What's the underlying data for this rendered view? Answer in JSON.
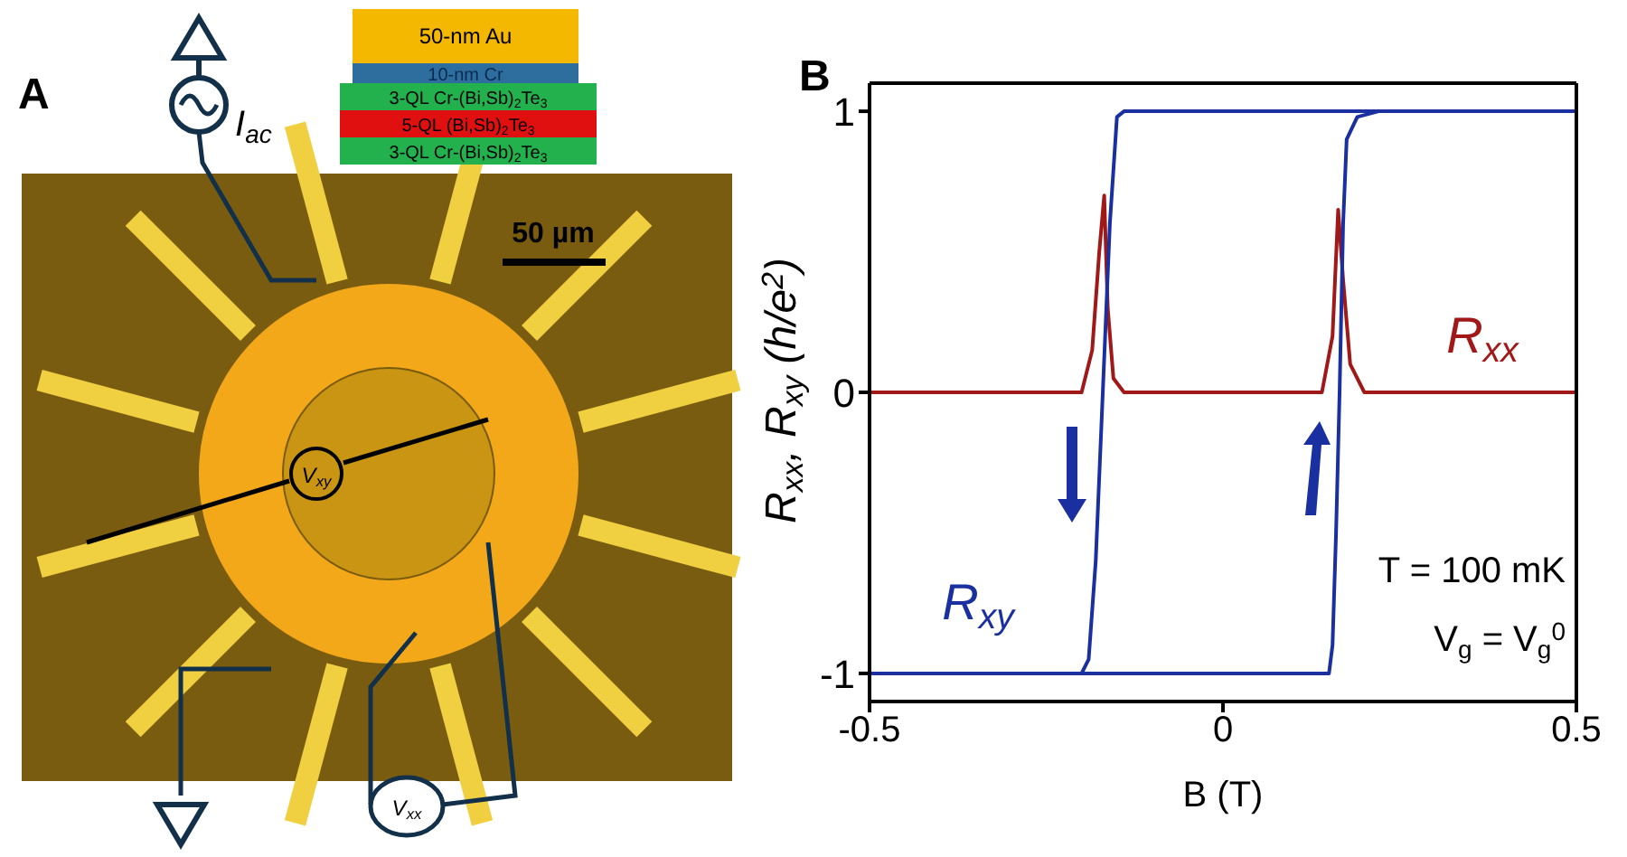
{
  "chart_data": [
    {
      "type": "other",
      "title": "A",
      "annotations": [
        "50-nm Au",
        "10-nm Cr",
        "3-QL Cr-(Bi,Sb)$_{2}$Te$_{3}$",
        "5-QL (Bi,Sb)$_{2}$Te$_{3}$",
        "3-QL Cr-(Bi,Sb)$_{2}$Te$_{3}$",
        "I$_{ac}$",
        "50 µm",
        "V$_{xy}$",
        "V$_{xx}$"
      ]
    },
    {
      "type": "line",
      "title": "B",
      "xlabel": "B (T)",
      "ylabel": "R$_{xx}$, R$_{xy}$ (h/e$^{2}$)",
      "xlim": [
        -0.5,
        0.5
      ],
      "xticks": [
        -0.5,
        0,
        0.5
      ],
      "ylim": [
        -1.1,
        1.1
      ],
      "yticks": [
        -1,
        0,
        1
      ],
      "grid": false,
      "legend": false,
      "marker": "none",
      "line_style": "solid",
      "annotations": [
        "T = 100 mK",
        "V$_{g}$ = V$_{g}$$^{0}$"
      ],
      "series": [
        {
          "name": "R$_{xx}$",
          "color": "#a01818",
          "x": [
            -0.5,
            -0.2,
            -0.185,
            -0.175,
            -0.168,
            -0.163,
            -0.155,
            -0.14,
            0.14,
            0.155,
            0.163,
            0.17,
            0.18,
            0.2,
            0.5
          ],
          "values": [
            0,
            0,
            0.15,
            0.5,
            0.7,
            0.3,
            0.05,
            0,
            0,
            0.2,
            0.65,
            0.4,
            0.1,
            0,
            0
          ]
        },
        {
          "name": "R$_{xy}$",
          "color": "#1a2fa0",
          "x": [
            0.5,
            -0.14,
            -0.15,
            -0.16,
            -0.17,
            -0.18,
            -0.19,
            -0.2,
            -0.5
          ],
          "values": [
            1,
            1,
            0.98,
            0.6,
            0,
            -0.6,
            -0.95,
            -1,
            -1
          ]
        },
        {
          "color": "#1a2fa0",
          "x": [
            -0.5,
            0.15,
            0.155,
            0.16,
            0.165,
            0.17,
            0.175,
            0.19,
            0.22,
            0.5
          ],
          "values": [
            -1,
            -1,
            -0.9,
            -0.5,
            0,
            0.6,
            0.9,
            0.98,
            1,
            1
          ]
        }
      ]
    }
  ]
}
